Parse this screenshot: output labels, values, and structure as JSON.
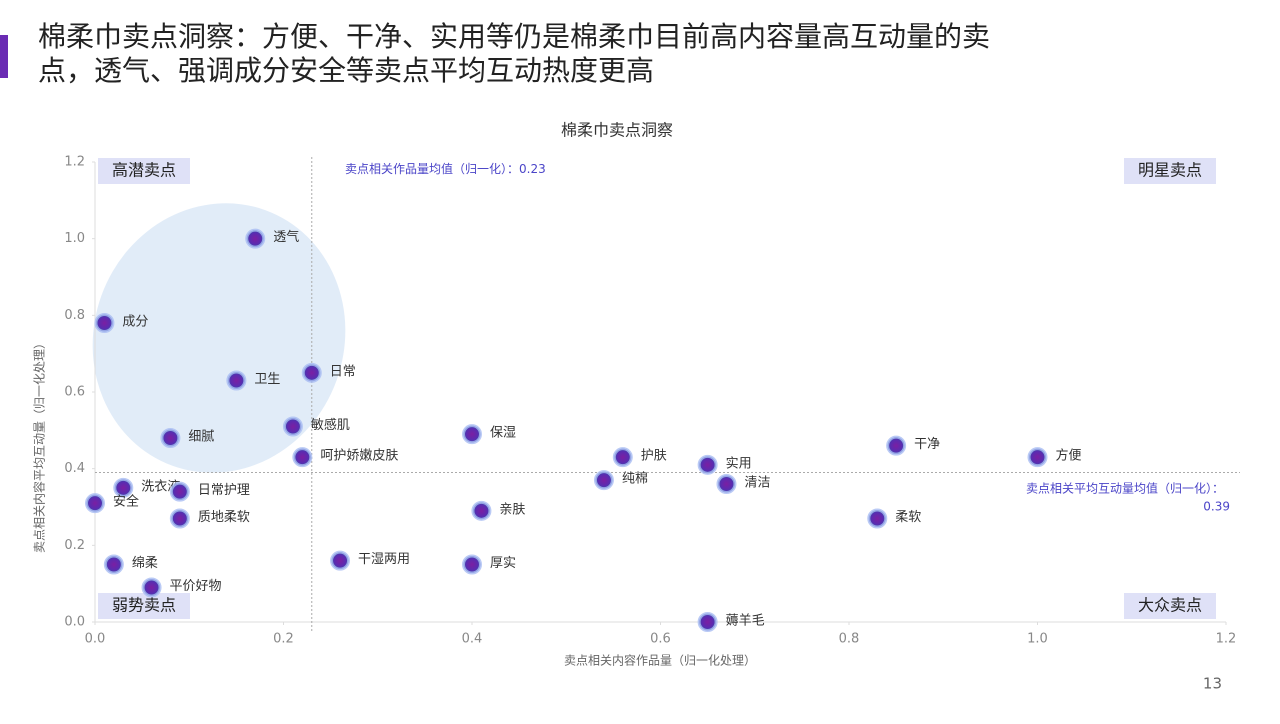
{
  "slide": {
    "title_lines": [
      "棉柔巾卖点洞察：方便、干净、实用等仍是棉柔巾目前高内容量高互动量的卖",
      "点，透气、强调成分安全等卖点平均互动热度更高"
    ],
    "page_number": "13"
  },
  "chart_data": {
    "type": "scatter",
    "title": "棉柔巾卖点洞察",
    "x_label": "卖点相关内容作品量（归一化处理）",
    "y_label": "卖点相关内容平均互动量（归一化处理）",
    "point_labels": [
      "透气",
      "成分",
      "卫生",
      "日常",
      "细腻",
      "敏感肌",
      "呵护娇嫩皮肤",
      "保湿",
      "护肤",
      "实用",
      "清洁",
      "纯棉",
      "干净",
      "方便",
      "柔软",
      "亲肤",
      "洗衣液",
      "日常护理",
      "安全",
      "质地柔软",
      "干湿两用",
      "厚实",
      "绵柔",
      "平价好物",
      "薅羊毛"
    ],
    "x": [
      0.17,
      0.01,
      0.15,
      0.23,
      0.08,
      0.21,
      0.22,
      0.4,
      0.56,
      0.65,
      0.67,
      0.54,
      0.85,
      1.0,
      0.83,
      0.41,
      0.03,
      0.09,
      0.0,
      0.09,
      0.26,
      0.4,
      0.02,
      0.06,
      0.65
    ],
    "values": [
      1.0,
      0.78,
      0.63,
      0.65,
      0.48,
      0.51,
      0.43,
      0.49,
      0.43,
      0.41,
      0.36,
      0.37,
      0.46,
      0.43,
      0.27,
      0.29,
      0.35,
      0.34,
      0.31,
      0.27,
      0.16,
      0.15,
      0.15,
      0.09,
      0.0
    ],
    "color": "#5b2bb0",
    "xlim": [
      0,
      1.2
    ],
    "ylim": [
      0,
      1.2
    ],
    "xticks": [
      {
        "value": 0,
        "label": "0.0"
      },
      0.2,
      0.4,
      0.6,
      0.8,
      {
        "value": 1,
        "label": "1.0"
      },
      1.2
    ],
    "yticks": [
      {
        "value": 0,
        "label": "0.0"
      },
      0.2,
      0.4,
      0.6,
      0.8,
      {
        "value": 1,
        "label": "1.0"
      },
      1.2
    ],
    "x_ref": {
      "label": "卖点相关作品量均值（归一化）：",
      "value": 0.23
    },
    "y_ref": {
      "label": "卖点相关平均互动量均值（归一化）：",
      "value": 0.39
    },
    "quadrants": {
      "top_left": "高潜卖点",
      "top_right": "明星卖点",
      "bottom_left": "弱势卖点",
      "bottom_right": "大众卖点"
    }
  }
}
